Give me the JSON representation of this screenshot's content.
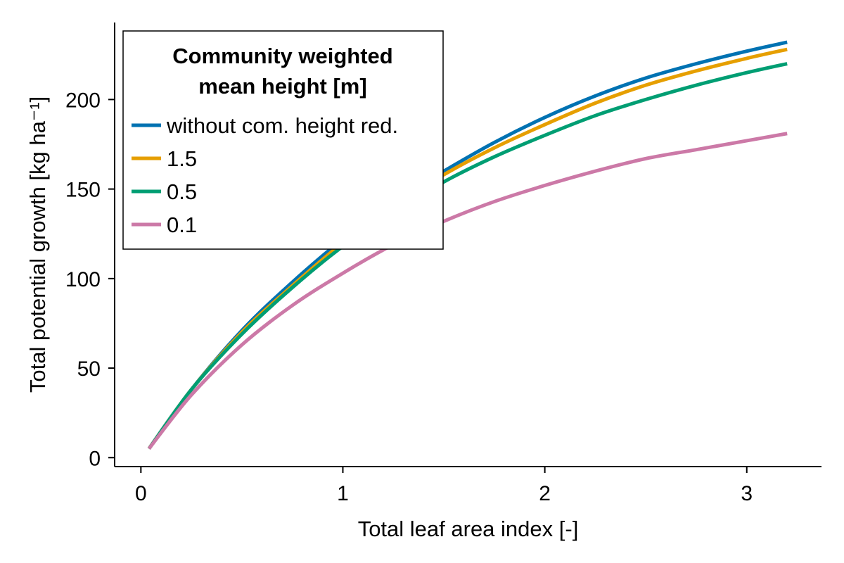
{
  "chart_data": {
    "type": "line",
    "xlabel": "Total leaf area index [-]",
    "ylabel": "Total potential growth [kg ha⁻¹]",
    "xlim": [
      -0.13,
      3.37
    ],
    "ylim": [
      -5,
      243
    ],
    "x_ticks": [
      0,
      1,
      2,
      3
    ],
    "x_tick_labels": [
      "0",
      "1",
      "2",
      "3"
    ],
    "y_ticks": [
      0,
      50,
      100,
      150,
      200
    ],
    "y_tick_labels": [
      "0",
      "50",
      "100",
      "150",
      "200"
    ],
    "grid": false,
    "legend": {
      "title_lines": [
        "Community weighted",
        "mean height [m]"
      ],
      "placement": "top-left"
    },
    "series": [
      {
        "name": "without com. height red.",
        "color": "#0072B2",
        "x": [
          0.04,
          0.25,
          0.5,
          0.75,
          1.0,
          1.25,
          1.5,
          1.75,
          2.0,
          2.25,
          2.5,
          2.75,
          3.0,
          3.2
        ],
        "y": [
          5,
          38,
          71,
          98,
          122,
          143,
          160,
          176,
          190,
          202,
          212,
          220,
          227,
          232
        ]
      },
      {
        "name": "1.5",
        "color": "#E69F00",
        "x": [
          0.04,
          0.25,
          0.5,
          0.75,
          1.0,
          1.25,
          1.5,
          1.75,
          2.0,
          2.25,
          2.5,
          2.75,
          3.0,
          3.2
        ],
        "y": [
          5,
          38,
          70,
          96,
          120,
          140,
          158,
          173,
          186,
          198,
          208,
          216,
          223,
          228
        ]
      },
      {
        "name": "0.5",
        "color": "#009E73",
        "x": [
          0.04,
          0.25,
          0.5,
          0.75,
          1.0,
          1.25,
          1.5,
          1.75,
          2.0,
          2.25,
          2.5,
          2.75,
          3.0,
          3.2
        ],
        "y": [
          5,
          38,
          69,
          95,
          118,
          137,
          154,
          168,
          180,
          191,
          200,
          208,
          215,
          220
        ]
      },
      {
        "name": "0.1",
        "color": "#CC79A7",
        "x": [
          0.04,
          0.25,
          0.5,
          0.75,
          1.0,
          1.25,
          1.5,
          1.75,
          2.0,
          2.25,
          2.5,
          2.75,
          3.0,
          3.2
        ],
        "y": [
          5,
          35,
          63,
          85,
          103,
          119,
          132,
          143,
          152,
          160,
          167,
          172,
          177,
          181
        ]
      }
    ]
  }
}
